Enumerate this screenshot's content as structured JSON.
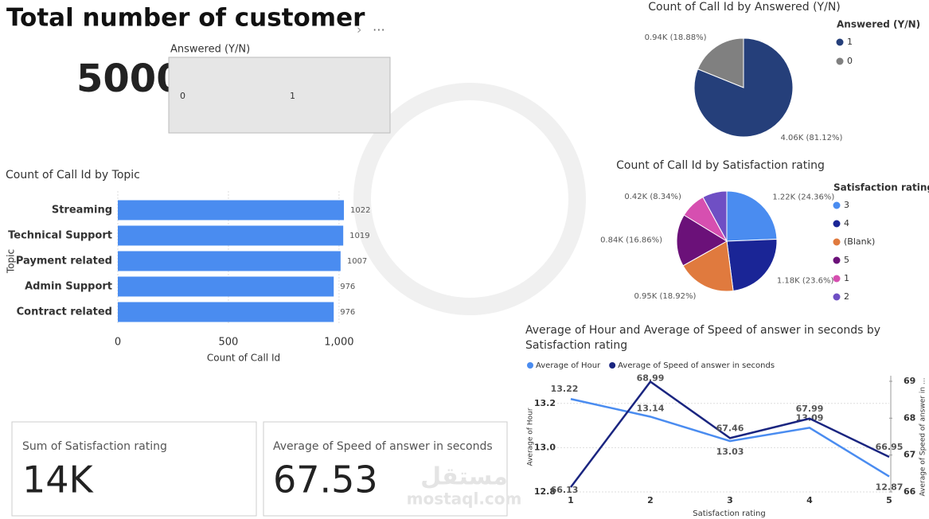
{
  "header": {
    "title": "Total number of customer",
    "value": 5000
  },
  "slicer": {
    "title": "Answered (Y/N)",
    "options": [
      "0",
      "1"
    ]
  },
  "cards": [
    {
      "label": "Sum of Satisfaction rating",
      "value": "14K"
    },
    {
      "label": "Average of Speed of answer in seconds",
      "value": 67.53
    }
  ],
  "watermark": {
    "arabic": "مستقل",
    "latin": "mostaql.com"
  },
  "chart_data": [
    {
      "type": "pie",
      "title": "Count of Call Id by Answered (Y/N)",
      "legend_title": "Answered (Y/N)",
      "categories": [
        "1",
        "0"
      ],
      "values": [
        4056,
        944
      ],
      "value_labels": [
        "4.06K (81.12%)",
        "0.94K (18.88%)"
      ],
      "colors": [
        "#253f7a",
        "#808080"
      ]
    },
    {
      "type": "hbar",
      "title": "Count of Call Id by Topic",
      "xlabel": "Count of Call Id",
      "ylabel": "Topic",
      "categories": [
        "Streaming",
        "Technical Support",
        "Payment related",
        "Admin Support",
        "Contract related"
      ],
      "values": [
        1022,
        1019,
        1007,
        976,
        976
      ],
      "color": "#4a8cf0",
      "xlim": [
        0,
        1022
      ],
      "xticks": [
        0,
        500,
        {
          "value": 1000,
          "label": "1,000"
        }
      ],
      "grid": true
    },
    {
      "type": "pie",
      "title": "Count of Call Id by Satisfaction rating",
      "legend_title": "Satisfaction rating",
      "categories": [
        "3",
        "4",
        "(Blank)",
        "5",
        "1",
        "2"
      ],
      "values": [
        1218,
        1180,
        946,
        843,
        417,
        396
      ],
      "value_labels": [
        "1.22K (24.36%)",
        "1.18K (23.6%)",
        "0.95K (18.92%)",
        "0.84K (16.86%)",
        "0.42K (8.34%)",
        null
      ],
      "colors": [
        "#4a8cf0",
        "#1a2596",
        "#e07a3e",
        "#6b1179",
        "#d64fb0",
        "#6f4fc4"
      ]
    },
    {
      "type": "line",
      "title": "Average of Hour and Average of Speed of answer in seconds by Satisfaction rating",
      "xlabel": "Satisfaction rating",
      "ylabel": "Average of Hour",
      "y2label": "Average of Speed of answer in ...",
      "x": [
        1,
        2,
        3,
        4,
        5
      ],
      "xlim": [
        1,
        5
      ],
      "xticks": [
        1,
        2,
        3,
        4,
        5
      ],
      "ylim": [
        12.8,
        13.3
      ],
      "yticks": [
        12.8,
        {
          "value": 13.0,
          "label": "13.0"
        },
        13.2
      ],
      "y2lim": [
        66,
        69
      ],
      "y2ticks": [
        66,
        67,
        68,
        69
      ],
      "grid": true,
      "series": [
        {
          "name": "Average of Hour",
          "color": "#4a8cf0",
          "values": [
            13.22,
            13.14,
            13.03,
            13.09,
            12.87
          ]
        },
        {
          "name": "Average of Speed of answer in seconds",
          "color": "#1a2580",
          "axis": "y2",
          "values": [
            66.13,
            68.99,
            67.46,
            67.99,
            66.95
          ]
        }
      ]
    }
  ]
}
